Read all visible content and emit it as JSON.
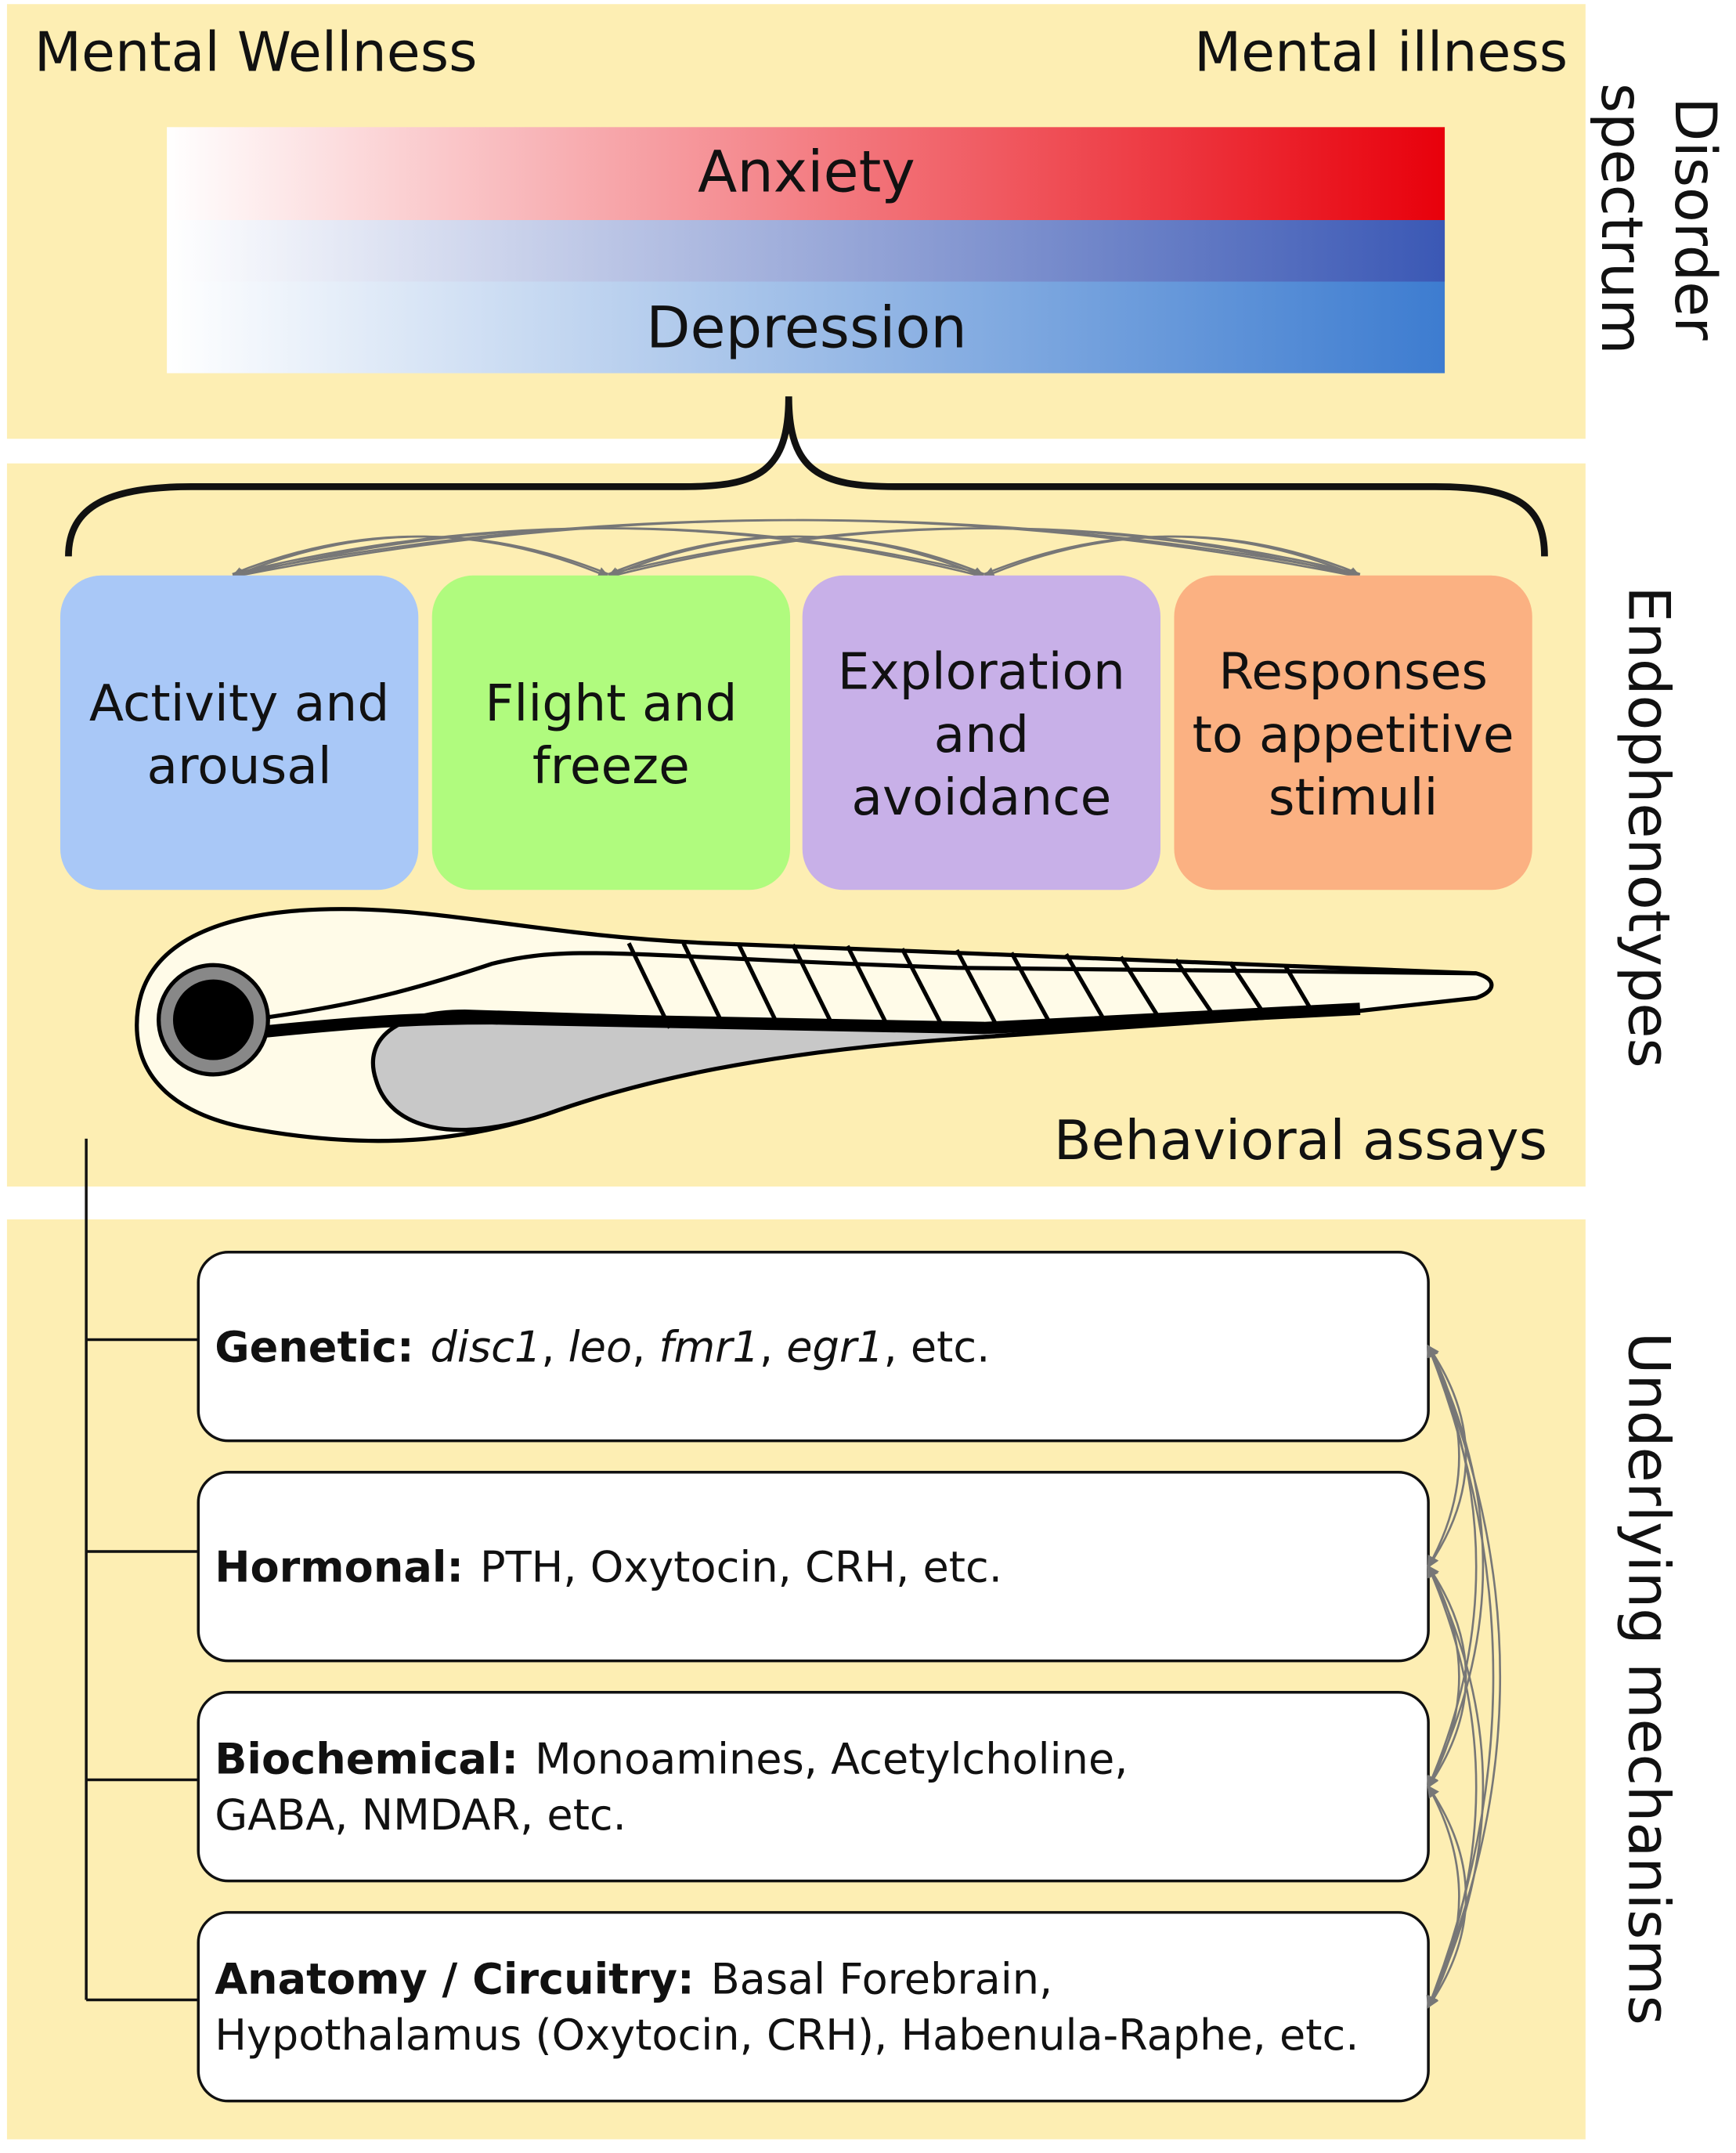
{
  "spectrum": {
    "left_label": "Mental Wellness",
    "right_label": "Mental illness",
    "bars": [
      "Anxiety",
      "Depression"
    ],
    "side_label": [
      "Disorder",
      "spectrum"
    ]
  },
  "endophenotypes": {
    "boxes": [
      [
        "Activity and",
        "arousal"
      ],
      [
        "Flight and",
        "freeze"
      ],
      [
        "Exploration",
        "and",
        "avoidance"
      ],
      [
        "Responses",
        "to appetitive",
        "stimuli"
      ]
    ],
    "caption": "Behavioral assays",
    "side_label": "Endophenotypes"
  },
  "mechanisms": {
    "side_label": "Underlying mechanisms",
    "items": [
      {
        "label": "Genetic:",
        "lines": [
          [
            {
              "text": "disc1",
              "style": "italic"
            },
            ", ",
            {
              "text": "leo",
              "style": "italic"
            },
            ", ",
            {
              "text": "fmr1",
              "style": "italic"
            },
            ", ",
            {
              "text": "egr1",
              "style": "italic"
            },
            ", etc."
          ]
        ]
      },
      {
        "label": "Hormonal:",
        "lines": [
          [
            "PTH, Oxytocin, CRH, etc."
          ]
        ]
      },
      {
        "label": "Biochemical:",
        "lines": [
          [
            "Monoamines, Acetylcholine,"
          ],
          [
            "GABA, NMDAR, etc."
          ]
        ]
      },
      {
        "label": "Anatomy / Circuitry:",
        "lines": [
          [
            "Basal Forebrain,"
          ],
          [
            "Hypothalamus (Oxytocin, CRH), Habenula-Raphe, etc."
          ]
        ]
      }
    ]
  }
}
